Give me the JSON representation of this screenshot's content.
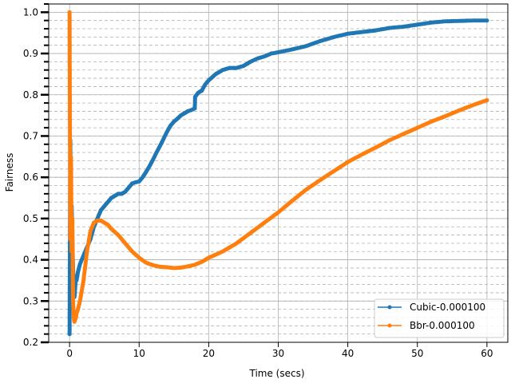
{
  "chart_data": {
    "type": "line",
    "title": "",
    "xlabel": "Time (secs)",
    "ylabel": "Fairness",
    "xlim": [
      -3,
      63
    ],
    "ylim": [
      0.2,
      1.02
    ],
    "xticks": [
      0,
      10,
      20,
      30,
      40,
      50,
      60
    ],
    "yticks": [
      0.2,
      0.3,
      0.4,
      0.5,
      0.6,
      0.7,
      0.8,
      0.9,
      1.0
    ],
    "xtick_labels": [
      "0",
      "10",
      "20",
      "30",
      "40",
      "50",
      "60"
    ],
    "ytick_labels": [
      "0.2",
      "0.3",
      "0.4",
      "0.5",
      "0.6",
      "0.7",
      "0.8",
      "0.9",
      "1.0"
    ],
    "grid": "major solid, minor dashed",
    "legend_position": "lower-right",
    "series": [
      {
        "name": "Cubic-0.000100",
        "color": "#1f77b4",
        "x": [
          0.0,
          0.1,
          0.2,
          0.3,
          0.4,
          0.5,
          0.6,
          0.7,
          0.8,
          0.9,
          1.0,
          1.2,
          1.5,
          2,
          2.5,
          3,
          3.5,
          4,
          4.5,
          5,
          5.5,
          6,
          6.5,
          7,
          7.5,
          8,
          8.5,
          9,
          9.5,
          10,
          10.5,
          11,
          11.5,
          12,
          12.5,
          13,
          13.5,
          14,
          14.5,
          15,
          15.5,
          16,
          16.5,
          17,
          17.5,
          18,
          18.05,
          18.5,
          19,
          19.5,
          20,
          21,
          22,
          23,
          24,
          25,
          26,
          27,
          28,
          29,
          30,
          32,
          34,
          36,
          38,
          40,
          42,
          44,
          46,
          48,
          50,
          52,
          54,
          56,
          58,
          60
        ],
        "values": [
          0.22,
          0.69,
          0.5,
          0.53,
          0.45,
          0.38,
          0.33,
          0.31,
          0.33,
          0.36,
          0.35,
          0.37,
          0.39,
          0.41,
          0.43,
          0.45,
          0.48,
          0.5,
          0.52,
          0.53,
          0.54,
          0.55,
          0.555,
          0.56,
          0.56,
          0.565,
          0.575,
          0.585,
          0.588,
          0.59,
          0.6,
          0.613,
          0.627,
          0.643,
          0.66,
          0.676,
          0.693,
          0.71,
          0.725,
          0.735,
          0.742,
          0.75,
          0.755,
          0.76,
          0.763,
          0.767,
          0.795,
          0.805,
          0.81,
          0.825,
          0.835,
          0.85,
          0.86,
          0.865,
          0.865,
          0.87,
          0.88,
          0.888,
          0.893,
          0.9,
          0.903,
          0.91,
          0.918,
          0.93,
          0.94,
          0.948,
          0.952,
          0.956,
          0.962,
          0.965,
          0.97,
          0.975,
          0.978,
          0.979,
          0.98,
          0.98
        ]
      },
      {
        "name": "Bbr-0.000100",
        "color": "#ff7f0e",
        "x": [
          0.0,
          0.1,
          0.2,
          0.3,
          0.4,
          0.5,
          0.6,
          0.7,
          0.8,
          0.9,
          1.0,
          1.2,
          1.5,
          2,
          2.5,
          3,
          3.5,
          4,
          4.5,
          5,
          5.5,
          6,
          7,
          8,
          9,
          10,
          11,
          12,
          13,
          14,
          15,
          16,
          17,
          18,
          19,
          20,
          22,
          24,
          26,
          28,
          30,
          32,
          34,
          36,
          38,
          40,
          42,
          44,
          46,
          48,
          50,
          52,
          54,
          56,
          58,
          60
        ],
        "values": [
          1.0,
          0.45,
          0.65,
          0.42,
          0.5,
          0.3,
          0.26,
          0.25,
          0.255,
          0.26,
          0.27,
          0.28,
          0.3,
          0.35,
          0.42,
          0.47,
          0.49,
          0.495,
          0.495,
          0.49,
          0.485,
          0.475,
          0.46,
          0.44,
          0.42,
          0.405,
          0.393,
          0.387,
          0.383,
          0.382,
          0.38,
          0.381,
          0.384,
          0.388,
          0.395,
          0.405,
          0.42,
          0.44,
          0.465,
          0.49,
          0.515,
          0.543,
          0.57,
          0.593,
          0.615,
          0.637,
          0.655,
          0.672,
          0.69,
          0.705,
          0.72,
          0.735,
          0.748,
          0.762,
          0.775,
          0.787
        ]
      }
    ]
  }
}
